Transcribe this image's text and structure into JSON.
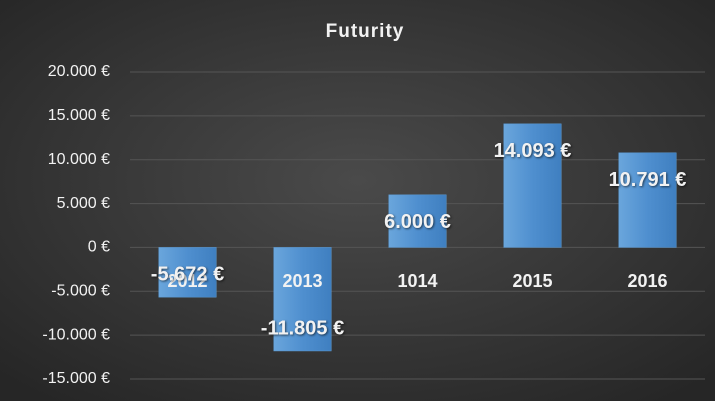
{
  "chart_data": {
    "type": "bar",
    "title": "Futurity",
    "categories": [
      "2012",
      "2013",
      "1014",
      "2015",
      "2016"
    ],
    "values": [
      -5672,
      -11805,
      6000,
      14093,
      10791
    ],
    "value_labels": [
      "-5.672 €",
      "-11.805 €",
      "6.000 €",
      "14.093 €",
      "10.791 €"
    ],
    "color": "#5b9bd5",
    "ylim": [
      -15000,
      20000
    ],
    "yticks": [
      {
        "value": -15000,
        "label": "-15.000 €"
      },
      {
        "value": -10000,
        "label": "-10.000 €"
      },
      {
        "value": -5000,
        "label": "-5.000 €"
      },
      {
        "value": 0,
        "label": "0 €"
      },
      {
        "value": 5000,
        "label": "5.000 €"
      },
      {
        "value": 10000,
        "label": "10.000 €"
      },
      {
        "value": 15000,
        "label": "15.000 €"
      },
      {
        "value": 20000,
        "label": "20.000 €"
      }
    ],
    "grid": true
  }
}
